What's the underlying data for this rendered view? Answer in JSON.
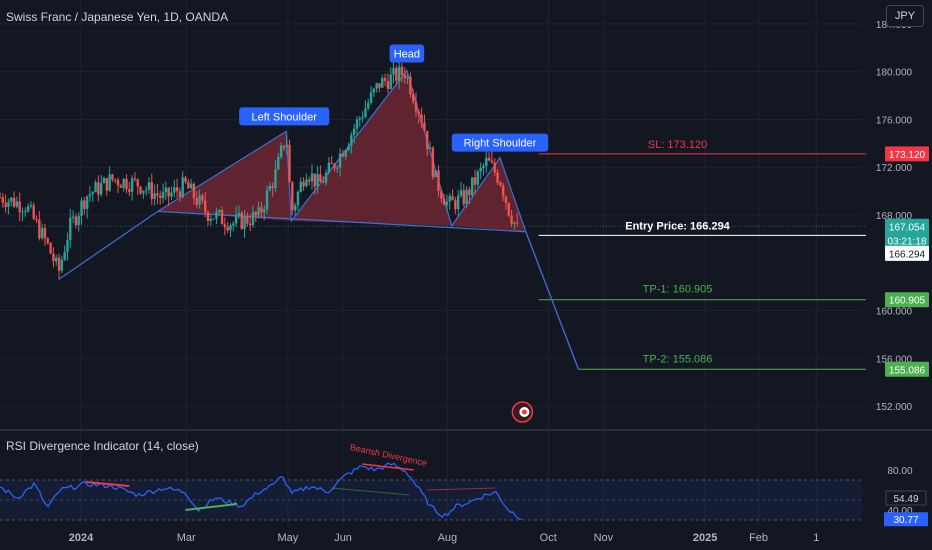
{
  "header": {
    "symbol_title": "Swiss Franc / Japanese Yen, 1D, OANDA",
    "currency_button": "JPY"
  },
  "colors": {
    "background": "#131722",
    "grid": "#1f2330",
    "candle_up": "#26a69a",
    "candle_down": "#ef5350",
    "pattern_fill": "#7a2a36",
    "pattern_line": "#3e6fd8",
    "sl": "#f23645",
    "tp": "#4caf50",
    "entry": "#ffffff",
    "rsi_line": "#2962ff",
    "label_blue": "#2962ff"
  },
  "chart_data": {
    "type": "candlestick",
    "ylim": [
      150.0,
      186.0
    ],
    "y_ticks": [
      {
        "value": 184,
        "label": "184.000"
      },
      {
        "value": 180,
        "label": "180.000"
      },
      {
        "value": 176,
        "label": "176.000"
      },
      {
        "value": 172,
        "label": "172.000"
      },
      {
        "value": 168,
        "label": "168.000"
      },
      {
        "value": 160,
        "label": "160.000"
      },
      {
        "value": 156,
        "label": "156.000"
      },
      {
        "value": 152,
        "label": "152.000"
      }
    ],
    "x_ticks": [
      {
        "t": 0.094,
        "label": "2024",
        "bold": true
      },
      {
        "t": 0.216,
        "label": "Mar",
        "bold": false
      },
      {
        "t": 0.334,
        "label": "May",
        "bold": false
      },
      {
        "t": 0.398,
        "label": "Jun",
        "bold": false
      },
      {
        "t": 0.519,
        "label": "Aug",
        "bold": false
      },
      {
        "t": 0.636,
        "label": "Oct",
        "bold": false
      },
      {
        "t": 0.7,
        "label": "Nov",
        "bold": false
      },
      {
        "t": 0.818,
        "label": "2025",
        "bold": true
      },
      {
        "t": 0.88,
        "label": "Feb",
        "bold": false
      },
      {
        "t": 0.947,
        "label": "1",
        "bold": false
      }
    ],
    "price_anchors": [
      [
        0.0,
        169.5
      ],
      [
        0.03,
        168.8
      ],
      [
        0.055,
        165.5
      ],
      [
        0.068,
        163.2
      ],
      [
        0.08,
        166.8
      ],
      [
        0.1,
        169.6
      ],
      [
        0.13,
        171.0
      ],
      [
        0.16,
        170.6
      ],
      [
        0.19,
        169.4
      ],
      [
        0.215,
        170.5
      ],
      [
        0.24,
        168.2
      ],
      [
        0.27,
        167.3
      ],
      [
        0.3,
        167.9
      ],
      [
        0.32,
        171.5
      ],
      [
        0.332,
        174.8
      ],
      [
        0.338,
        168.2
      ],
      [
        0.355,
        171.8
      ],
      [
        0.37,
        170.5
      ],
      [
        0.39,
        172.5
      ],
      [
        0.42,
        176.5
      ],
      [
        0.44,
        179.0
      ],
      [
        0.47,
        180.0
      ],
      [
        0.49,
        176.0
      ],
      [
        0.505,
        171.0
      ],
      [
        0.52,
        168.8
      ],
      [
        0.54,
        169.5
      ],
      [
        0.565,
        172.5
      ],
      [
        0.58,
        171.0
      ],
      [
        0.59,
        168.5
      ],
      [
        0.6,
        166.8
      ]
    ],
    "pattern": {
      "points": [
        {
          "t": 0.068,
          "price": 162.6
        },
        {
          "t": 0.183,
          "price": 168.3
        },
        {
          "t": 0.332,
          "price": 175.0
        },
        {
          "t": 0.338,
          "price": 167.5
        },
        {
          "t": 0.472,
          "price": 180.1
        },
        {
          "t": 0.524,
          "price": 167.1
        },
        {
          "t": 0.58,
          "price": 172.8
        },
        {
          "t": 0.61,
          "price": 166.6
        }
      ],
      "projection_end": {
        "t": 0.671,
        "price": 155.1
      }
    },
    "labels": {
      "left_shoulder": "Left Shoulder",
      "head": "Head",
      "right_shoulder": "Right Shoulder",
      "sl_line": "SL: 173.120",
      "entry_line": "Entry Price: 166.294",
      "tp1_line": "TP-1: 160.905",
      "tp2_line": "TP-2: 155.086"
    },
    "levels": {
      "sl": 173.12,
      "entry": 166.294,
      "tp1": 160.905,
      "tp2": 155.086,
      "current": 167.054
    },
    "axis_badges": {
      "sl": "173.120",
      "current": "167.054",
      "countdown": "03:21:18",
      "entry": "166.294",
      "tp1": "160.905",
      "tp2": "155.086"
    },
    "rsi": {
      "title": "RSI Divergence Indicator (14, close)",
      "ylim": [
        28.0,
        94.0
      ],
      "ticks": [
        {
          "value": 80,
          "label": "80.00"
        },
        {
          "value": 40,
          "label": "40.00"
        }
      ],
      "band": [
        30.0,
        70.0
      ],
      "current_label": "54.49",
      "value_label": "30.77",
      "current_value": 30.77,
      "annotation": "Bearish Divergence",
      "anchors": [
        [
          0.0,
          63.0
        ],
        [
          0.02,
          52.0
        ],
        [
          0.04,
          66.0
        ],
        [
          0.055,
          42.0
        ],
        [
          0.07,
          60.0
        ],
        [
          0.1,
          66.0
        ],
        [
          0.13,
          64.0
        ],
        [
          0.16,
          55.0
        ],
        [
          0.19,
          62.0
        ],
        [
          0.215,
          58.0
        ],
        [
          0.23,
          40.0
        ],
        [
          0.25,
          52.0
        ],
        [
          0.28,
          44.0
        ],
        [
          0.3,
          58.0
        ],
        [
          0.32,
          66.0
        ],
        [
          0.326,
          76.0
        ],
        [
          0.338,
          56.0
        ],
        [
          0.36,
          64.0
        ],
        [
          0.38,
          58.0
        ],
        [
          0.4,
          74.0
        ],
        [
          0.42,
          84.0
        ],
        [
          0.435,
          80.0
        ],
        [
          0.455,
          86.0
        ],
        [
          0.472,
          78.0
        ],
        [
          0.485,
          62.0
        ],
        [
          0.5,
          43.0
        ],
        [
          0.515,
          34.0
        ],
        [
          0.53,
          44.0
        ],
        [
          0.545,
          48.0
        ],
        [
          0.56,
          54.0
        ],
        [
          0.575,
          58.0
        ],
        [
          0.59,
          40.0
        ],
        [
          0.605,
          32.0
        ]
      ]
    }
  }
}
